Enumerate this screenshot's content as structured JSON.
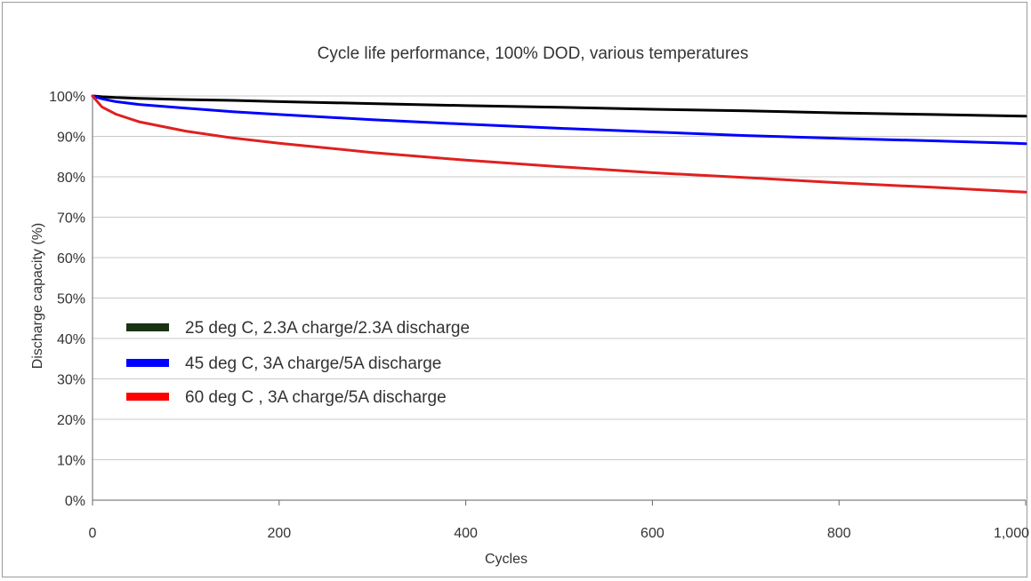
{
  "chart_data": {
    "type": "line",
    "title": "Cycle life performance, 100% DOD, various temperatures",
    "xlabel": "Cycles",
    "ylabel": "Discharge capacity (%)",
    "xlim": [
      0,
      1000
    ],
    "ylim": [
      0,
      100
    ],
    "x_ticks": [
      "0",
      "200",
      "400",
      "600",
      "800",
      "1,000"
    ],
    "x_tick_values": [
      0,
      200,
      400,
      600,
      800,
      1000
    ],
    "y_ticks": [
      "0%",
      "10%",
      "20%",
      "30%",
      "40%",
      "50%",
      "60%",
      "70%",
      "80%",
      "90%",
      "100%"
    ],
    "y_tick_values": [
      0,
      10,
      20,
      30,
      40,
      50,
      60,
      70,
      80,
      90,
      100
    ],
    "grid": true,
    "legend_placement": "middle-left",
    "x": [
      0,
      10,
      25,
      50,
      100,
      150,
      200,
      300,
      400,
      500,
      600,
      700,
      800,
      900,
      1000
    ],
    "series": [
      {
        "name": "25 deg C, 2.3A charge/2.3A discharge",
        "color": "#000000",
        "legend_color": "#1a3314",
        "values": [
          100,
          99.8,
          99.6,
          99.4,
          99.1,
          98.9,
          98.6,
          98.1,
          97.6,
          97.2,
          96.7,
          96.3,
          95.8,
          95.4,
          95.0
        ]
      },
      {
        "name": "45 deg C, 3A charge/5A discharge",
        "color": "#0000ff",
        "legend_color": "#0000ff",
        "values": [
          100,
          99.3,
          98.6,
          97.9,
          97.0,
          96.1,
          95.4,
          94.1,
          93.0,
          92.0,
          91.1,
          90.2,
          89.5,
          88.9,
          88.2
        ]
      },
      {
        "name": "60 deg C , 3A charge/5A discharge",
        "color": "#e02020",
        "legend_color": "#ff0000",
        "values": [
          100,
          97.3,
          95.5,
          93.6,
          91.3,
          89.6,
          88.3,
          86.0,
          84.1,
          82.5,
          81.0,
          79.8,
          78.5,
          77.4,
          76.2
        ]
      }
    ]
  }
}
